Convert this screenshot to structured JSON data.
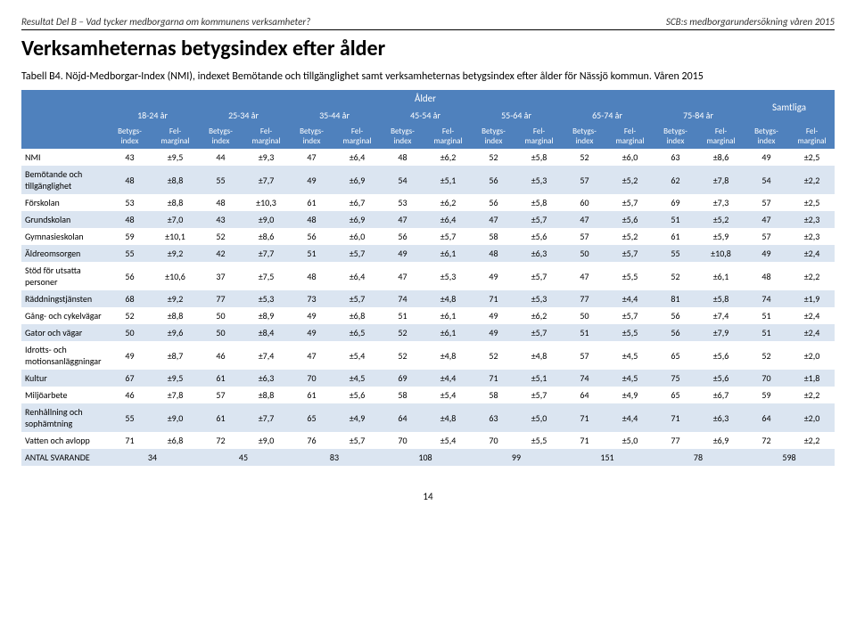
{
  "header": {
    "left": "Resultat Del B – Vad tycker medborgarna om kommunens verksamheter?",
    "right": "SCB:s medborgarundersökning våren 2015"
  },
  "title": "Verksamheternas betygsindex efter ålder",
  "caption": "Tabell B4. Nöjd-Medborgar-Index (NMI), indexet Bemötande och tillgänglighet samt verksamheternas betygsindex efter ålder för Nässjö kommun. Våren 2015",
  "colgroup_top": "Ålder",
  "samtliga": "Samtliga",
  "age_groups": [
    "18-24 år",
    "25-34 år",
    "35-44 år",
    "45-54 år",
    "55-64 år",
    "65-74 år",
    "75-84 år"
  ],
  "subheaders": {
    "betyg": "Betygs-index",
    "fel": "Fel-marginal"
  },
  "rows": [
    {
      "label": "NMI",
      "cells": [
        "43",
        "±9,5",
        "44",
        "±9,3",
        "47",
        "±6,4",
        "48",
        "±6,2",
        "52",
        "±5,8",
        "52",
        "±6,0",
        "63",
        "±8,6",
        "49",
        "±2,5"
      ]
    },
    {
      "label": "Bemötande och tillgänglighet",
      "cells": [
        "48",
        "±8,8",
        "55",
        "±7,7",
        "49",
        "±6,9",
        "54",
        "±5,1",
        "56",
        "±5,3",
        "57",
        "±5,2",
        "62",
        "±7,8",
        "54",
        "±2,2"
      ]
    },
    {
      "label": "Förskolan",
      "cells": [
        "53",
        "±8,8",
        "48",
        "±10,3",
        "61",
        "±6,7",
        "53",
        "±6,2",
        "56",
        "±5,8",
        "60",
        "±5,7",
        "69",
        "±7,3",
        "57",
        "±2,5"
      ]
    },
    {
      "label": "Grundskolan",
      "cells": [
        "48",
        "±7,0",
        "43",
        "±9,0",
        "48",
        "±6,9",
        "47",
        "±6,4",
        "47",
        "±5,7",
        "47",
        "±5,6",
        "51",
        "±5,2",
        "47",
        "±2,3"
      ]
    },
    {
      "label": "Gymnasieskolan",
      "cells": [
        "59",
        "±10,1",
        "52",
        "±8,6",
        "56",
        "±6,0",
        "56",
        "±5,7",
        "58",
        "±5,6",
        "57",
        "±5,2",
        "61",
        "±5,9",
        "57",
        "±2,3"
      ]
    },
    {
      "label": "Äldreomsorgen",
      "cells": [
        "55",
        "±9,2",
        "42",
        "±7,7",
        "51",
        "±5,7",
        "49",
        "±6,1",
        "48",
        "±6,3",
        "50",
        "±5,7",
        "55",
        "±10,8",
        "49",
        "±2,4"
      ]
    },
    {
      "label": "Stöd för utsatta personer",
      "cells": [
        "56",
        "±10,6",
        "37",
        "±7,5",
        "48",
        "±6,4",
        "47",
        "±5,3",
        "49",
        "±5,7",
        "47",
        "±5,5",
        "52",
        "±6,1",
        "48",
        "±2,2"
      ]
    },
    {
      "label": "Räddningstjänsten",
      "cells": [
        "68",
        "±9,2",
        "77",
        "±5,3",
        "73",
        "±5,7",
        "74",
        "±4,8",
        "71",
        "±5,3",
        "77",
        "±4,4",
        "81",
        "±5,8",
        "74",
        "±1,9"
      ]
    },
    {
      "label": "Gång- och cykelvägar",
      "cells": [
        "52",
        "±8,8",
        "50",
        "±8,9",
        "49",
        "±6,8",
        "51",
        "±6,1",
        "49",
        "±6,2",
        "50",
        "±5,7",
        "56",
        "±7,4",
        "51",
        "±2,4"
      ]
    },
    {
      "label": "Gator och vägar",
      "cells": [
        "50",
        "±9,6",
        "50",
        "±8,4",
        "49",
        "±6,5",
        "52",
        "±6,1",
        "49",
        "±5,7",
        "51",
        "±5,5",
        "56",
        "±7,9",
        "51",
        "±2,4"
      ]
    },
    {
      "label": "Idrotts- och motionsanläggningar",
      "cells": [
        "49",
        "±8,7",
        "46",
        "±7,4",
        "47",
        "±5,4",
        "52",
        "±4,8",
        "52",
        "±4,8",
        "57",
        "±4,5",
        "65",
        "±5,6",
        "52",
        "±2,0"
      ]
    },
    {
      "label": "Kultur",
      "cells": [
        "67",
        "±9,5",
        "61",
        "±6,3",
        "70",
        "±4,5",
        "69",
        "±4,4",
        "71",
        "±5,1",
        "74",
        "±4,5",
        "75",
        "±5,6",
        "70",
        "±1,8"
      ]
    },
    {
      "label": "Miljöarbete",
      "cells": [
        "46",
        "±7,8",
        "57",
        "±8,8",
        "61",
        "±5,6",
        "58",
        "±5,4",
        "58",
        "±5,7",
        "64",
        "±4,9",
        "65",
        "±6,7",
        "59",
        "±2,2"
      ]
    },
    {
      "label": "Renhållning och sophämtning",
      "cells": [
        "55",
        "±9,0",
        "61",
        "±7,7",
        "65",
        "±4,9",
        "64",
        "±4,8",
        "63",
        "±5,0",
        "71",
        "±4,4",
        "71",
        "±6,3",
        "64",
        "±2,0"
      ]
    },
    {
      "label": "Vatten och avlopp",
      "cells": [
        "71",
        "±6,8",
        "72",
        "±9,0",
        "76",
        "±5,7",
        "70",
        "±5,4",
        "70",
        "±5,5",
        "71",
        "±5,0",
        "77",
        "±6,9",
        "72",
        "±2,2"
      ]
    },
    {
      "label": "ANTAL SVARANDE",
      "cells": [
        "34",
        "",
        "45",
        "",
        "83",
        "",
        "108",
        "",
        "99",
        "",
        "151",
        "",
        "78",
        "",
        "598",
        ""
      ],
      "merge_pairs": true
    }
  ],
  "page_number": "14",
  "colors": {
    "header_bg": "#4f81bd",
    "header_fg": "#ffffff",
    "band_bg": "#dbe5f1"
  }
}
